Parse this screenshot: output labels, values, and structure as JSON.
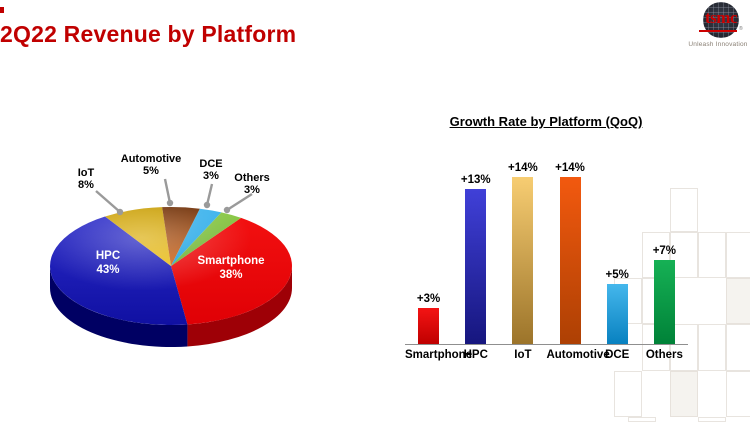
{
  "header": {
    "title": "2Q22 Revenue by Platform",
    "title_color": "#c00000",
    "logo": {
      "wordmark": "tsmc",
      "registered": "®",
      "tagline": "Unleash Innovation"
    }
  },
  "chart_data": [
    {
      "type": "pie",
      "title": "2Q22 Revenue by Platform",
      "labels": [
        "Smartphone",
        "HPC",
        "IoT",
        "Automotive",
        "DCE",
        "Others"
      ],
      "values": [
        38,
        43,
        8,
        5,
        3,
        3
      ],
      "display_values": [
        "38%",
        "43%",
        "8%",
        "5%",
        "3%",
        "3%"
      ],
      "unit": "%",
      "style": "3d-pie",
      "start_angle_deg": 54.6,
      "colors_top": [
        "#f21010",
        "#2a2ac8",
        "#c89d02",
        "#6f2f06",
        "#3eb4ee",
        "#8cc948"
      ],
      "colors_bottom": [
        "#e00005",
        "#1010a2",
        "#edbf1c",
        "#d4671a",
        "#15a0e0",
        "#66ad2c"
      ],
      "side_colors": [
        "#9e0006",
        "#000063",
        "#a57d00",
        "#5e2605",
        "#1479a8",
        "#55932a"
      ],
      "label_placement": "HPC and Smartphone inside, small slices outside with leader lines"
    },
    {
      "type": "bar",
      "title": "Growth Rate by Platform (QoQ)",
      "categories": [
        "Smartphone",
        "HPC",
        "IoT",
        "Automotive",
        "DCE",
        "Others"
      ],
      "values": [
        3,
        13,
        14,
        14,
        5,
        7
      ],
      "display_values": [
        "+3%",
        "+13%",
        "+14%",
        "+14%",
        "+5%",
        "+7%"
      ],
      "unit": "%",
      "ylim": [
        0,
        15
      ],
      "grid": false,
      "colors_top": [
        "#f41414",
        "#4040d8",
        "#f7cd72",
        "#f2590f",
        "#45b7ec",
        "#16b155"
      ],
      "colors_bottom": [
        "#bf0000",
        "#16167e",
        "#9c742a",
        "#ad4003",
        "#0881c0",
        "#008238"
      ]
    }
  ]
}
